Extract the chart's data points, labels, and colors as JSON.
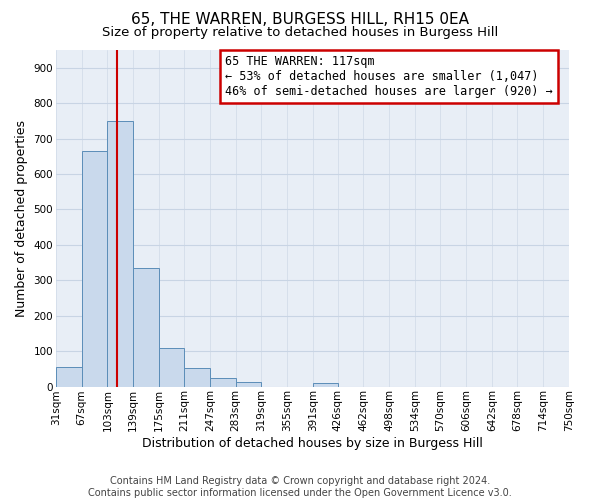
{
  "title": "65, THE WARREN, BURGESS HILL, RH15 0EA",
  "subtitle": "Size of property relative to detached houses in Burgess Hill",
  "xlabel": "Distribution of detached houses by size in Burgess Hill",
  "ylabel": "Number of detached properties",
  "footer_lines": [
    "Contains HM Land Registry data © Crown copyright and database right 2024.",
    "Contains public sector information licensed under the Open Government Licence v3.0."
  ],
  "bin_edges": [
    31,
    67,
    103,
    139,
    175,
    211,
    247,
    283,
    319,
    355,
    391,
    426,
    462,
    498,
    534,
    570,
    606,
    642,
    678,
    714,
    750
  ],
  "bin_counts": [
    55,
    665,
    750,
    335,
    108,
    52,
    25,
    13,
    0,
    0,
    10,
    0,
    0,
    0,
    0,
    0,
    0,
    0,
    0,
    0
  ],
  "bar_color": "#c9d9ec",
  "bar_edge_color": "#5b8db8",
  "property_size": 117,
  "vline_color": "#cc0000",
  "annotation_line1": "65 THE WARREN: 117sqm",
  "annotation_line2": "← 53% of detached houses are smaller (1,047)",
  "annotation_line3": "46% of semi-detached houses are larger (920) →",
  "annotation_box_edge_color": "#cc0000",
  "annotation_box_bg_color": "#ffffff",
  "yticks": [
    0,
    100,
    200,
    300,
    400,
    500,
    600,
    700,
    800,
    900
  ],
  "ylim": [
    0,
    950
  ],
  "grid_color": "#c8d4e4",
  "bg_color": "#e8eef6",
  "title_fontsize": 11,
  "subtitle_fontsize": 9.5,
  "axis_label_fontsize": 9,
  "tick_fontsize": 7.5,
  "annotation_fontsize": 8.5,
  "footer_fontsize": 7
}
